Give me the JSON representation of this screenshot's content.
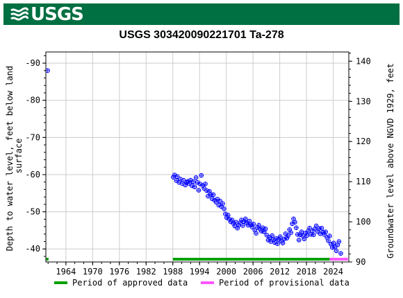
{
  "header": {
    "logo_text": "USGS",
    "logo_icon": "usgs-wave-icon",
    "brand_color": "#006f41"
  },
  "chart_data": {
    "type": "scatter",
    "title": "USGS 303420090221701 Ta-278",
    "ylabel_left": "Depth to water level, feet below land surface",
    "ylabel_right": "Groundwater level above NGVD 1929, feet",
    "xlim": [
      1959.5,
      2027.5
    ],
    "ylim": [
      -93,
      -36.5
    ],
    "ylim_right": [
      142.3,
      90
    ],
    "x_ticks": [
      1964,
      1970,
      1976,
      1982,
      1988,
      1994,
      2000,
      2006,
      2012,
      2018,
      2024
    ],
    "x_tick_labels": [
      "1964",
      "1970",
      "1976",
      "1982",
      "1988",
      "1994",
      "2000",
      "2006",
      "2012",
      "2018",
      "2024"
    ],
    "y_ticks": [
      -90,
      -80,
      -70,
      -60,
      -50,
      -40
    ],
    "y_tick_labels": [
      "-90",
      "-80",
      "-70",
      "-60",
      "-50",
      "-40"
    ],
    "y_right_ticks": [
      140,
      130,
      120,
      110,
      100,
      90
    ],
    "y_right_tick_labels": [
      "140",
      "130",
      "120",
      "110",
      "100",
      "90"
    ],
    "grid": true,
    "marker_color": "#0000ff",
    "series": [
      {
        "name": "Depth to water level",
        "points": [
          [
            1959.9,
            -88.0
          ],
          [
            1988.1,
            -59.3
          ],
          [
            1988.4,
            -59.9
          ],
          [
            1988.8,
            -58.4
          ],
          [
            1989.0,
            -59.5
          ],
          [
            1989.4,
            -57.9
          ],
          [
            1989.7,
            -58.8
          ],
          [
            1990.1,
            -57.6
          ],
          [
            1990.4,
            -58.5
          ],
          [
            1990.8,
            -57.2
          ],
          [
            1991.1,
            -57.9
          ],
          [
            1991.4,
            -58.2
          ],
          [
            1991.7,
            -57.6
          ],
          [
            1992.0,
            -58.5
          ],
          [
            1992.3,
            -57.0
          ],
          [
            1992.6,
            -58.1
          ],
          [
            1992.9,
            -56.7
          ],
          [
            1993.2,
            -59.2
          ],
          [
            1993.5,
            -57.9
          ],
          [
            1993.8,
            -55.8
          ],
          [
            1994.1,
            -57.5
          ],
          [
            1994.4,
            -59.8
          ],
          [
            1994.7,
            -57.1
          ],
          [
            1995.0,
            -56.3
          ],
          [
            1995.3,
            -57.5
          ],
          [
            1995.6,
            -55.7
          ],
          [
            1995.9,
            -54.2
          ],
          [
            1996.2,
            -55.5
          ],
          [
            1996.5,
            -54.7
          ],
          [
            1996.8,
            -53.5
          ],
          [
            1997.1,
            -54.6
          ],
          [
            1997.4,
            -53.1
          ],
          [
            1997.7,
            -52.6
          ],
          [
            1998.0,
            -53.4
          ],
          [
            1998.3,
            -51.8
          ],
          [
            1998.6,
            -52.9
          ],
          [
            1998.9,
            -51.4
          ],
          [
            1999.2,
            -52.2
          ],
          [
            1999.5,
            -50.8
          ],
          [
            1999.8,
            -49.4
          ],
          [
            2000.1,
            -48.4
          ],
          [
            2000.4,
            -49.1
          ],
          [
            2000.7,
            -48.0
          ],
          [
            2001.0,
            -47.3
          ],
          [
            2001.3,
            -47.8
          ],
          [
            2001.6,
            -46.9
          ],
          [
            2001.9,
            -46.2
          ],
          [
            2002.2,
            -47.2
          ],
          [
            2002.5,
            -45.6
          ],
          [
            2002.8,
            -46.4
          ],
          [
            2003.1,
            -47.0
          ],
          [
            2003.4,
            -47.8
          ],
          [
            2003.7,
            -46.3
          ],
          [
            2004.0,
            -47.4
          ],
          [
            2004.3,
            -48.1
          ],
          [
            2004.6,
            -47.0
          ],
          [
            2004.9,
            -46.4
          ],
          [
            2005.2,
            -47.5
          ],
          [
            2005.5,
            -46.6
          ],
          [
            2005.8,
            -45.9
          ],
          [
            2006.1,
            -46.7
          ],
          [
            2006.4,
            -45.1
          ],
          [
            2006.7,
            -44.2
          ],
          [
            2007.0,
            -45.8
          ],
          [
            2007.3,
            -46.4
          ],
          [
            2007.6,
            -45.3
          ],
          [
            2007.9,
            -44.8
          ],
          [
            2008.2,
            -45.7
          ],
          [
            2008.5,
            -44.6
          ],
          [
            2008.8,
            -45.4
          ],
          [
            2009.1,
            -43.7
          ],
          [
            2009.4,
            -42.4
          ],
          [
            2009.7,
            -43.1
          ],
          [
            2010.0,
            -42.0
          ],
          [
            2010.3,
            -43.6
          ],
          [
            2010.6,
            -42.5
          ],
          [
            2010.9,
            -41.7
          ],
          [
            2011.2,
            -42.8
          ],
          [
            2011.5,
            -41.4
          ],
          [
            2011.8,
            -42.6
          ],
          [
            2012.1,
            -43.3
          ],
          [
            2012.4,
            -42.1
          ],
          [
            2012.7,
            -41.6
          ],
          [
            2013.0,
            -42.7
          ],
          [
            2013.3,
            -44.1
          ],
          [
            2013.6,
            -42.9
          ],
          [
            2013.9,
            -43.6
          ],
          [
            2014.2,
            -45.2
          ],
          [
            2014.5,
            -44.4
          ],
          [
            2014.8,
            -46.8
          ],
          [
            2015.1,
            -48.1
          ],
          [
            2015.4,
            -47.2
          ],
          [
            2015.7,
            -45.7
          ],
          [
            2016.0,
            -43.9
          ],
          [
            2016.3,
            -42.4
          ],
          [
            2016.6,
            -43.8
          ],
          [
            2016.9,
            -44.6
          ],
          [
            2017.2,
            -43.5
          ],
          [
            2017.5,
            -42.7
          ],
          [
            2017.8,
            -44.3
          ],
          [
            2018.1,
            -43.6
          ],
          [
            2018.4,
            -44.8
          ],
          [
            2018.7,
            -45.6
          ],
          [
            2019.0,
            -43.9
          ],
          [
            2019.3,
            -44.9
          ],
          [
            2019.6,
            -43.8
          ],
          [
            2019.9,
            -45.4
          ],
          [
            2020.2,
            -46.2
          ],
          [
            2020.5,
            -44.7
          ],
          [
            2020.8,
            -45.5
          ],
          [
            2021.1,
            -44.1
          ],
          [
            2021.4,
            -45.6
          ],
          [
            2021.7,
            -44.5
          ],
          [
            2022.0,
            -43.9
          ],
          [
            2022.3,
            -44.6
          ],
          [
            2022.6,
            -43.1
          ],
          [
            2022.9,
            -42.2
          ],
          [
            2023.2,
            -43.5
          ],
          [
            2023.5,
            -41.3
          ],
          [
            2023.8,
            -40.4
          ],
          [
            2024.1,
            -41.6
          ],
          [
            2024.4,
            -40.5
          ],
          [
            2024.7,
            -39.5
          ],
          [
            2025.0,
            -41.1
          ],
          [
            2025.3,
            -42.0
          ],
          [
            2025.7,
            -38.8
          ]
        ]
      }
    ],
    "approval_periods": [
      {
        "label": "Period of approved data",
        "color": "#00a000",
        "ranges": [
          [
            1959.6,
            1960.1
          ],
          [
            1988.0,
            2023.2
          ]
        ]
      },
      {
        "label": "Period of provisional data",
        "color": "#ff55ff",
        "ranges": [
          [
            2023.2,
            2027.3
          ]
        ]
      }
    ]
  }
}
